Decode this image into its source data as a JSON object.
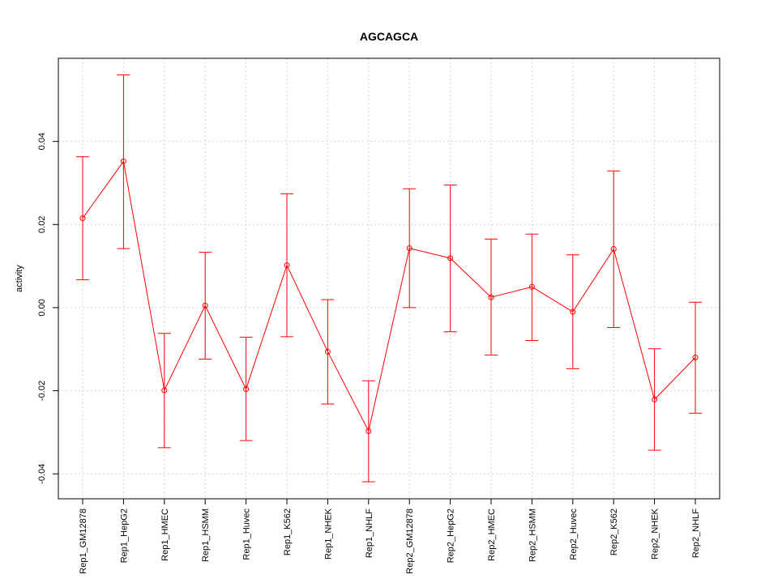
{
  "chart_data": {
    "type": "line",
    "title": "AGCAGCA",
    "xlabel": "",
    "ylabel": "activity",
    "categories": [
      "Rep1_GM12878",
      "Rep1_HepG2",
      "Rep1_HMEC",
      "Rep1_HSMM",
      "Rep1_Huvec",
      "Rep1_K562",
      "Rep1_NHEK",
      "Rep1_NHLF",
      "Rep2_GM12878",
      "Rep2_HepG2",
      "Rep2_HMEC",
      "Rep2_HSMM",
      "Rep2_Huvec",
      "Rep2_K562",
      "Rep2_NHEK",
      "Rep2_NHLF"
    ],
    "series": [
      {
        "values": [
          0.0215,
          0.0352,
          -0.0199,
          0.0005,
          -0.0196,
          0.0102,
          -0.0106,
          -0.0297,
          0.0143,
          0.0119,
          0.0025,
          0.005,
          -0.001,
          0.0141,
          -0.0221,
          -0.012
        ],
        "lower": [
          0.0067,
          0.0142,
          -0.0337,
          -0.0124,
          -0.032,
          -0.007,
          -0.0232,
          -0.0419,
          0.0,
          -0.0058,
          -0.0114,
          -0.0079,
          -0.0147,
          -0.0048,
          -0.0343,
          -0.0254
        ],
        "upper": [
          0.0363,
          0.056,
          -0.0062,
          0.0133,
          -0.0071,
          0.0274,
          0.0019,
          -0.0176,
          0.0286,
          0.0295,
          0.0165,
          0.0177,
          0.0127,
          0.0329,
          -0.0099,
          0.0013
        ],
        "color": "#ff0000"
      }
    ],
    "yticks": [
      "-0.04",
      "-0.02",
      "0.00",
      "0.02",
      "0.04"
    ],
    "ylim": [
      -0.046,
      0.06
    ],
    "grid": true,
    "legend": "none"
  }
}
